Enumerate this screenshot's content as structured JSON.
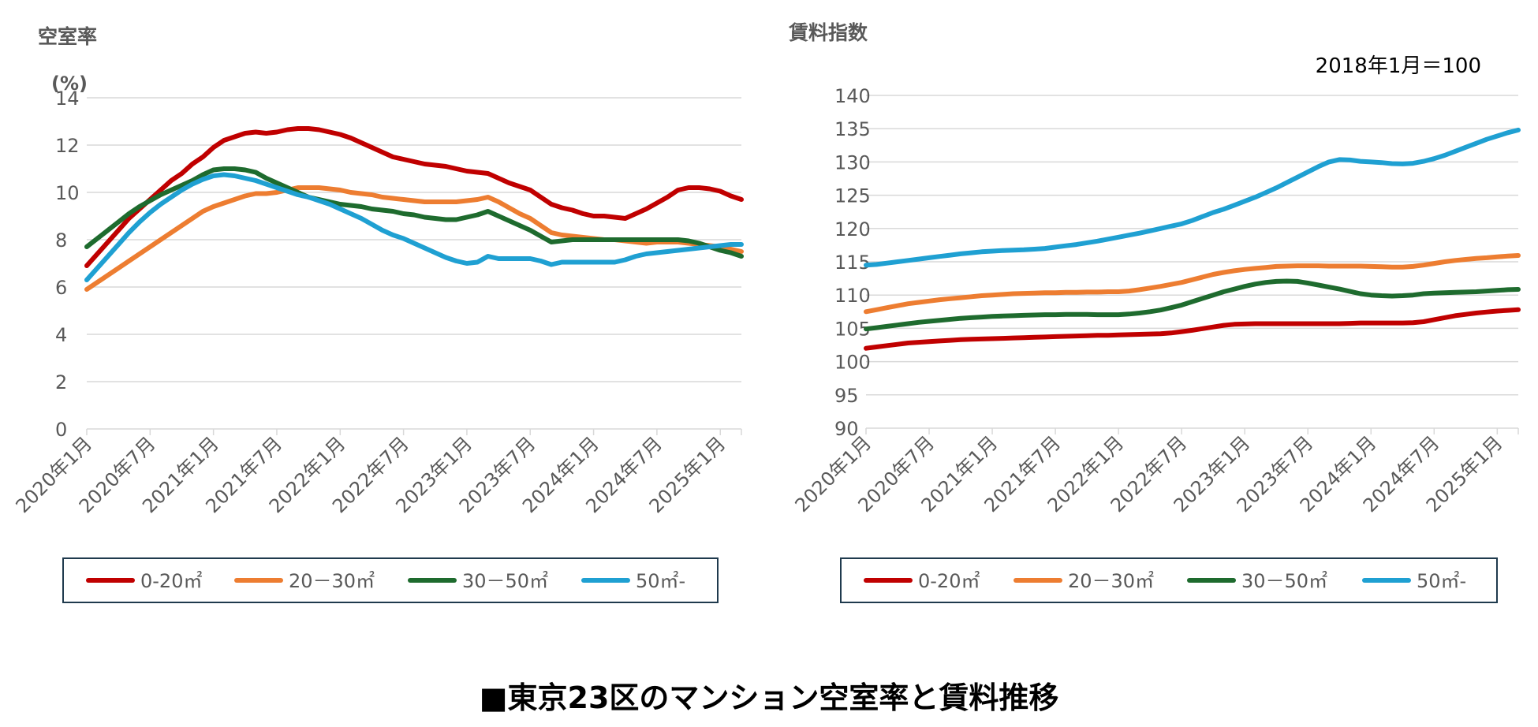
{
  "caption": "■東京23区のマンション空室率と賃料推移",
  "colors": {
    "0-20": "#c00000",
    "20-30": "#ed7d31",
    "30-50": "#1e6b2e",
    "50-": "#1fa0d2",
    "grid": "#d9d9d9",
    "text": "#595959"
  },
  "chart_data": [
    {
      "type": "line",
      "title": "空室率",
      "ylabel": "(%)",
      "ylim": [
        0,
        14
      ],
      "yticks": [
        0,
        2,
        4,
        6,
        8,
        10,
        12,
        14
      ],
      "x_range": [
        "2020年1月",
        "2025年11月"
      ],
      "xtick_labels": [
        "2020年1月",
        "2020年7月",
        "2021年1月",
        "2021年7月",
        "2022年1月",
        "2022年7月",
        "2023年1月",
        "2023年7月",
        "2024年1月",
        "2024年7月",
        "2025年1月"
      ],
      "grid": "horizontal",
      "legend_position": "bottom",
      "series": [
        {
          "name": "0-20㎡",
          "color": "#c00000",
          "values": [
            6.9,
            7.4,
            7.9,
            8.4,
            8.9,
            9.3,
            9.7,
            10.1,
            10.5,
            10.8,
            11.2,
            11.5,
            11.9,
            12.2,
            12.35,
            12.5,
            12.55,
            12.5,
            12.55,
            12.65,
            12.7,
            12.7,
            12.65,
            12.55,
            12.45,
            12.3,
            12.1,
            11.9,
            11.7,
            11.5,
            11.4,
            11.3,
            11.2,
            11.15,
            11.1,
            11.0,
            10.9,
            10.85,
            10.8,
            10.6,
            10.4,
            10.25,
            10.1,
            9.8,
            9.5,
            9.35,
            9.25,
            9.1,
            9.0,
            9.0,
            8.95,
            8.9,
            9.1,
            9.3,
            9.55,
            9.8,
            10.1,
            10.2,
            10.2,
            10.15,
            10.05,
            9.85,
            9.7
          ]
        },
        {
          "name": "20－30㎡",
          "color": "#ed7d31",
          "values": [
            5.9,
            6.2,
            6.5,
            6.8,
            7.1,
            7.4,
            7.7,
            8.0,
            8.3,
            8.6,
            8.9,
            9.2,
            9.4,
            9.55,
            9.7,
            9.85,
            9.95,
            9.95,
            10.0,
            10.1,
            10.2,
            10.2,
            10.2,
            10.15,
            10.1,
            10.0,
            9.95,
            9.9,
            9.8,
            9.75,
            9.7,
            9.65,
            9.6,
            9.6,
            9.6,
            9.6,
            9.65,
            9.7,
            9.8,
            9.6,
            9.35,
            9.1,
            8.9,
            8.6,
            8.3,
            8.2,
            8.15,
            8.1,
            8.05,
            8.0,
            8.0,
            7.95,
            7.9,
            7.85,
            7.9,
            7.9,
            7.9,
            7.85,
            7.8,
            7.75,
            7.7,
            7.6,
            7.5
          ]
        },
        {
          "name": "30－50㎡",
          "color": "#1e6b2e",
          "values": [
            7.7,
            8.05,
            8.4,
            8.75,
            9.1,
            9.4,
            9.65,
            9.9,
            10.1,
            10.3,
            10.5,
            10.75,
            10.95,
            11.0,
            11.0,
            10.95,
            10.85,
            10.6,
            10.4,
            10.2,
            10.0,
            9.8,
            9.7,
            9.6,
            9.5,
            9.45,
            9.4,
            9.3,
            9.25,
            9.2,
            9.1,
            9.05,
            8.95,
            8.9,
            8.85,
            8.85,
            8.95,
            9.05,
            9.2,
            9.0,
            8.8,
            8.6,
            8.4,
            8.15,
            7.9,
            7.95,
            8.0,
            8.0,
            8.0,
            8.0,
            8.0,
            8.0,
            8.0,
            8.0,
            8.0,
            8.0,
            8.0,
            7.95,
            7.85,
            7.7,
            7.55,
            7.45,
            7.3
          ]
        },
        {
          "name": "50㎡-",
          "color": "#1fa0d2",
          "values": [
            6.3,
            6.8,
            7.3,
            7.8,
            8.3,
            8.75,
            9.15,
            9.5,
            9.8,
            10.1,
            10.35,
            10.55,
            10.7,
            10.75,
            10.7,
            10.6,
            10.5,
            10.35,
            10.2,
            10.05,
            9.9,
            9.8,
            9.65,
            9.5,
            9.3,
            9.1,
            8.9,
            8.65,
            8.4,
            8.2,
            8.05,
            7.85,
            7.65,
            7.45,
            7.25,
            7.1,
            7.0,
            7.05,
            7.3,
            7.2,
            7.2,
            7.2,
            7.2,
            7.1,
            6.95,
            7.05,
            7.05,
            7.05,
            7.05,
            7.05,
            7.05,
            7.15,
            7.3,
            7.4,
            7.45,
            7.5,
            7.55,
            7.6,
            7.65,
            7.7,
            7.75,
            7.8,
            7.8
          ]
        }
      ]
    },
    {
      "type": "line",
      "title": "賃料指数",
      "note": "2018年1月＝100",
      "ylim": [
        90,
        140
      ],
      "yticks": [
        90,
        95,
        100,
        105,
        110,
        115,
        120,
        125,
        130,
        135,
        140
      ],
      "x_range": [
        "2020年1月",
        "2025年11月"
      ],
      "xtick_labels": [
        "2020年1月",
        "2020年7月",
        "2021年1月",
        "2021年7月",
        "2022年1月",
        "2022年7月",
        "2023年1月",
        "2023年7月",
        "2024年1月",
        "2024年7月",
        "2025年1月"
      ],
      "grid": "horizontal",
      "legend_position": "bottom",
      "series": [
        {
          "name": "0-20㎡",
          "color": "#c00000",
          "values": [
            102.0,
            102.2,
            102.4,
            102.6,
            102.8,
            102.9,
            103.0,
            103.1,
            103.2,
            103.3,
            103.35,
            103.4,
            103.45,
            103.5,
            103.55,
            103.6,
            103.65,
            103.7,
            103.75,
            103.8,
            103.85,
            103.9,
            103.95,
            103.95,
            104.0,
            104.05,
            104.1,
            104.15,
            104.2,
            104.3,
            104.5,
            104.7,
            104.95,
            105.2,
            105.45,
            105.6,
            105.65,
            105.7,
            105.7,
            105.7,
            105.7,
            105.7,
            105.7,
            105.7,
            105.7,
            105.7,
            105.75,
            105.8,
            105.8,
            105.8,
            105.8,
            105.8,
            105.85,
            106.0,
            106.3,
            106.6,
            106.9,
            107.1,
            107.3,
            107.45,
            107.6,
            107.7,
            107.8
          ]
        },
        {
          "name": "20－30㎡",
          "color": "#ed7d31",
          "values": [
            107.5,
            107.8,
            108.1,
            108.4,
            108.7,
            108.9,
            109.1,
            109.3,
            109.45,
            109.6,
            109.75,
            109.9,
            110.0,
            110.1,
            110.2,
            110.25,
            110.3,
            110.35,
            110.35,
            110.4,
            110.4,
            110.45,
            110.45,
            110.5,
            110.5,
            110.6,
            110.8,
            111.05,
            111.3,
            111.6,
            111.9,
            112.3,
            112.7,
            113.1,
            113.4,
            113.65,
            113.85,
            114.0,
            114.15,
            114.3,
            114.35,
            114.4,
            114.4,
            114.4,
            114.35,
            114.35,
            114.35,
            114.35,
            114.3,
            114.25,
            114.2,
            114.2,
            114.3,
            114.5,
            114.75,
            115.0,
            115.2,
            115.35,
            115.5,
            115.6,
            115.75,
            115.85,
            115.95
          ]
        },
        {
          "name": "30－50㎡",
          "color": "#1e6b2e",
          "values": [
            104.9,
            105.1,
            105.3,
            105.5,
            105.7,
            105.9,
            106.05,
            106.2,
            106.35,
            106.5,
            106.6,
            106.7,
            106.8,
            106.85,
            106.9,
            106.95,
            107.0,
            107.05,
            107.05,
            107.1,
            107.1,
            107.1,
            107.05,
            107.05,
            107.05,
            107.15,
            107.3,
            107.5,
            107.75,
            108.1,
            108.5,
            109.0,
            109.5,
            110.0,
            110.5,
            110.9,
            111.3,
            111.65,
            111.9,
            112.05,
            112.1,
            112.05,
            111.8,
            111.5,
            111.2,
            110.9,
            110.55,
            110.2,
            110.0,
            109.9,
            109.85,
            109.9,
            110.0,
            110.2,
            110.3,
            110.35,
            110.4,
            110.45,
            110.5,
            110.6,
            110.7,
            110.8,
            110.85
          ]
        },
        {
          "name": "50㎡-",
          "color": "#1fa0d2",
          "values": [
            114.5,
            114.6,
            114.8,
            115.0,
            115.2,
            115.4,
            115.6,
            115.8,
            116.0,
            116.2,
            116.35,
            116.5,
            116.6,
            116.7,
            116.75,
            116.8,
            116.9,
            117.0,
            117.2,
            117.4,
            117.6,
            117.85,
            118.1,
            118.4,
            118.7,
            119.0,
            119.3,
            119.65,
            120.0,
            120.35,
            120.7,
            121.2,
            121.8,
            122.4,
            122.9,
            123.5,
            124.1,
            124.7,
            125.4,
            126.1,
            126.9,
            127.7,
            128.5,
            129.3,
            130.0,
            130.35,
            130.3,
            130.1,
            130.0,
            129.9,
            129.75,
            129.7,
            129.8,
            130.1,
            130.5,
            131.0,
            131.6,
            132.2,
            132.8,
            133.4,
            133.9,
            134.4,
            134.8
          ]
        }
      ]
    }
  ]
}
